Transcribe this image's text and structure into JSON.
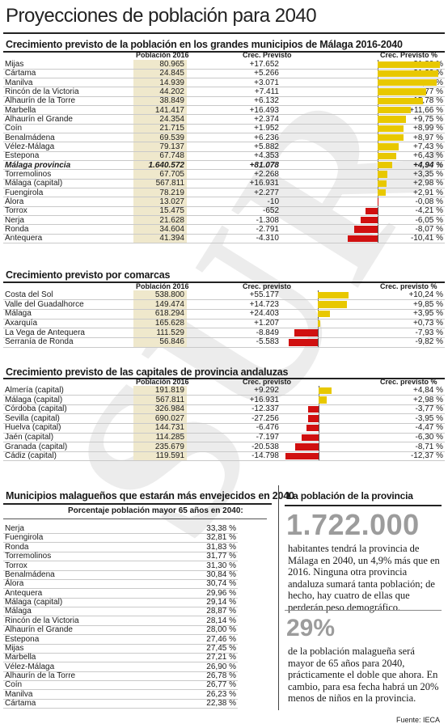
{
  "title": "Proyecciones de población para 2040",
  "watermark": "SUR",
  "source": "Fuente: IECA",
  "colors": {
    "positive": "#e8c800",
    "negative": "#d01010",
    "shade": "#efe8cc"
  },
  "chart_data": [
    {
      "type": "bar",
      "title": "Crecimiento previsto de la población en los grandes municipios de Málaga 2016-2040",
      "columns": [
        "Población 2016",
        "Crec. Previsto",
        "Crec. Previsto %"
      ],
      "rows": [
        {
          "name": "Mijas",
          "pop": "80.965",
          "diff": "+17.652",
          "pct": "+21,80 %",
          "value": 21.8
        },
        {
          "name": "Cártama",
          "pop": "24.845",
          "diff": "+5.266",
          "pct": "+21,20 %",
          "value": 21.2
        },
        {
          "name": "Manilva",
          "pop": "14.939",
          "diff": "+3.071",
          "pct": "+20,56 %",
          "value": 20.56
        },
        {
          "name": "Rincón de la Victoria",
          "pop": "44.202",
          "diff": "+7.411",
          "pct": "+16,77 %",
          "value": 16.77
        },
        {
          "name": "Alhaurín de la Torre",
          "pop": "38.849",
          "diff": "+6.132",
          "pct": "+15,78 %",
          "value": 15.78
        },
        {
          "name": "Marbella",
          "pop": "141.417",
          "diff": "+16.493",
          "pct": "+11,66 %",
          "value": 11.66
        },
        {
          "name": "Alhaurín el Grande",
          "pop": "24.354",
          "diff": "+2.374",
          "pct": "+9,75 %",
          "value": 9.75
        },
        {
          "name": "Coín",
          "pop": "21.715",
          "diff": "+1.952",
          "pct": "+8,99 %",
          "value": 8.99
        },
        {
          "name": "Benalmádena",
          "pop": "69.539",
          "diff": "+6.236",
          "pct": "+8,97 %",
          "value": 8.97
        },
        {
          "name": "Vélez-Málaga",
          "pop": "79.137",
          "diff": "+5.882",
          "pct": "+7,43 %",
          "value": 7.43
        },
        {
          "name": "Estepona",
          "pop": "67.748",
          "diff": "+4.353",
          "pct": "+6,43 %",
          "value": 6.43
        },
        {
          "name": "Málaga provincia",
          "pop": "1.640.572",
          "diff": "+81.078",
          "pct": "+4,94 %",
          "value": 4.94,
          "bold": true
        },
        {
          "name": "Torremolinos",
          "pop": "67.705",
          "diff": "+2.268",
          "pct": "+3,35 %",
          "value": 3.35
        },
        {
          "name": "Málaga (capital)",
          "pop": "567.811",
          "diff": "+16.931",
          "pct": "+2,98 %",
          "value": 2.98
        },
        {
          "name": "Fuengirola",
          "pop": "78.219",
          "diff": "+2.277",
          "pct": "+2,91 %",
          "value": 2.91
        },
        {
          "name": "Álora",
          "pop": "13.027",
          "diff": "-10",
          "pct": "-0,08 %",
          "value": -0.08
        },
        {
          "name": "Torrox",
          "pop": "15.475",
          "diff": "-652",
          "pct": "-4,21 %",
          "value": -4.21
        },
        {
          "name": "Nerja",
          "pop": "21.628",
          "diff": "-1.308",
          "pct": "-6,05 %",
          "value": -6.05
        },
        {
          "name": "Ronda",
          "pop": "34.604",
          "diff": "-2.791",
          "pct": "-8,07 %",
          "value": -8.07
        },
        {
          "name": "Antequera",
          "pop": "41.394",
          "diff": "-4.310",
          "pct": "-10,41 %",
          "value": -10.41
        }
      ]
    },
    {
      "type": "bar",
      "title": "Crecimiento previsto por comarcas",
      "columns": [
        "Población 2016",
        "Crec. previsto",
        "Crec. previsto %"
      ],
      "rows": [
        {
          "name": "Costa del Sol",
          "pop": "538.800",
          "diff": "+55.177",
          "pct": "+10,24 %",
          "value": 10.24
        },
        {
          "name": "Valle del Guadalhorce",
          "pop": "149.474",
          "diff": "+14.723",
          "pct": "+9,85 %",
          "value": 9.85
        },
        {
          "name": "Málaga",
          "pop": "618.294",
          "diff": "+24.403",
          "pct": "+3,95 %",
          "value": 3.95
        },
        {
          "name": "Axarquía",
          "pop": "165.628",
          "diff": "+1.207",
          "pct": "+0,73 %",
          "value": 0.73
        },
        {
          "name": "La Vega de Antequera",
          "pop": "111.529",
          "diff": "-8.849",
          "pct": "-7,93 %",
          "value": -7.93
        },
        {
          "name": "Serranía de Ronda",
          "pop": "56.846",
          "diff": "-5.583",
          "pct": "-9,82 %",
          "value": -9.82
        }
      ]
    },
    {
      "type": "bar",
      "title": "Crecimiento previsto de las capitales de provincia andaluzas",
      "columns": [
        "Población 2016",
        "Crec. previsto",
        "Crec. previsto %"
      ],
      "rows": [
        {
          "name": "Almería (capital)",
          "pop": "191.819",
          "diff": "+9.292",
          "pct": "+4,84 %",
          "value": 4.84
        },
        {
          "name": "Málaga (capital)",
          "pop": "567.811",
          "diff": "+16.931",
          "pct": "+2,98 %",
          "value": 2.98
        },
        {
          "name": "Córdoba (capital)",
          "pop": "326.984",
          "diff": "-12.337",
          "pct": "-3,77 %",
          "value": -3.77
        },
        {
          "name": "Sevilla (capital)",
          "pop": "690.027",
          "diff": "-27.256",
          "pct": "-3,95 %",
          "value": -3.95
        },
        {
          "name": "Huelva (capital)",
          "pop": "144.731",
          "diff": "-6.476",
          "pct": "-4,47 %",
          "value": -4.47
        },
        {
          "name": "Jaén (capital)",
          "pop": "114.285",
          "diff": "-7.197",
          "pct": "-6,30 %",
          "value": -6.3
        },
        {
          "name": "Granada (capital)",
          "pop": "235.679",
          "diff": "-20.538",
          "pct": "-8,71 %",
          "value": -8.71
        },
        {
          "name": "Cádiz (capital)",
          "pop": "119.591",
          "diff": "-14.798",
          "pct": "-12,37 %",
          "value": -12.37
        }
      ]
    },
    {
      "type": "table",
      "title": "Municipios malagueños que estarán más envejecidos en 2040",
      "subtitle": "Porcentaje población mayor 65 años en 2040:",
      "rows": [
        {
          "name": "Nerja",
          "pct": "33,38 %"
        },
        {
          "name": "Fuengirola",
          "pct": "32,81 %"
        },
        {
          "name": "Ronda",
          "pct": "31,83 %"
        },
        {
          "name": "Torremolinos",
          "pct": "31,77 %"
        },
        {
          "name": "Torrox",
          "pct": "31,30 %"
        },
        {
          "name": "Benalmádena",
          "pct": "30,84 %"
        },
        {
          "name": "Álora",
          "pct": "30,74 %"
        },
        {
          "name": "Antequera",
          "pct": "29,96 %"
        },
        {
          "name": "Málaga (capital)",
          "pct": "29,14 %"
        },
        {
          "name": "Málaga",
          "pct": "28,87 %"
        },
        {
          "name": "Rincón de la Victoria",
          "pct": "28,14 %"
        },
        {
          "name": "Alhaurín el Grande",
          "pct": "28,00 %"
        },
        {
          "name": "Estepona",
          "pct": "27,46 %"
        },
        {
          "name": "Mijas",
          "pct": "27,45 %"
        },
        {
          "name": "Marbella",
          "pct": "27,21 %"
        },
        {
          "name": "Vélez-Málaga",
          "pct": "26,90 %"
        },
        {
          "name": "Alhaurín de la Torre",
          "pct": "26,78 %"
        },
        {
          "name": "Coín",
          "pct": "26,77 %"
        },
        {
          "name": "Manilva",
          "pct": "26,23 %"
        },
        {
          "name": "Cártama",
          "pct": "22,38 %"
        }
      ]
    }
  ],
  "sidebar": {
    "title": "La población de la provincia",
    "stat1": "1.722.000",
    "text1": "habitantes tendrá la provincia de Málaga en 2040, un 4,9% más que en 2016. Ninguna otra provincia andaluza sumará tanta población; de hecho, hay cuatro de ellas que perderán peso demográfico.",
    "stat2": "29%",
    "text2": "de la población malagueña será mayor de 65 años para 2040, prácticamente el doble que ahora. En cambio, para esa fecha habrá un 20% menos de niños en la provincia."
  }
}
